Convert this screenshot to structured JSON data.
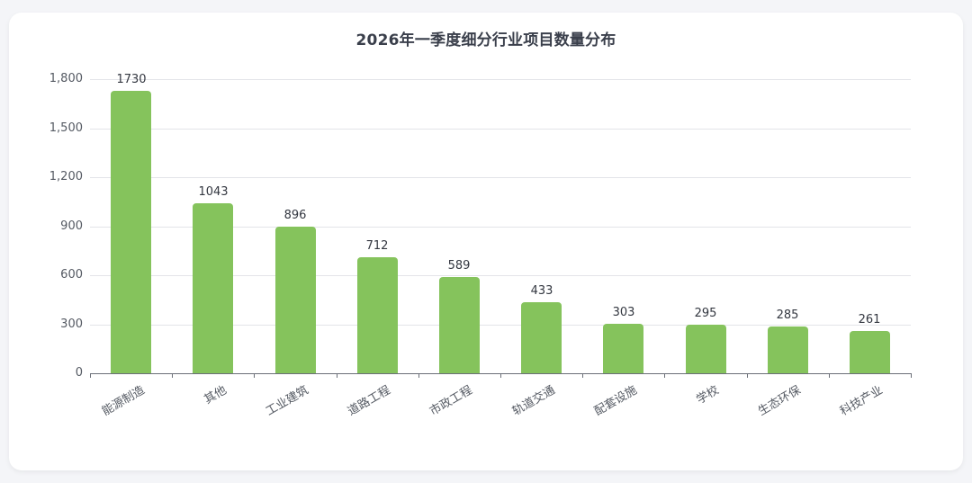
{
  "chart_data": {
    "type": "bar",
    "title": "2026年一季度细分行业项目数量分布",
    "xlabel": "",
    "ylabel": "",
    "categories": [
      "能源制造",
      "其他",
      "工业建筑",
      "道路工程",
      "市政工程",
      "轨道交通",
      "配套设施",
      "学校",
      "生态环保",
      "科技产业"
    ],
    "values": [
      1730,
      1043,
      896,
      712,
      589,
      433,
      303,
      295,
      285,
      261
    ],
    "ylim": [
      0,
      1800
    ],
    "yticks": [
      0,
      300,
      600,
      900,
      1200,
      1500,
      1800
    ],
    "ytick_labels": [
      "0",
      "300",
      "600",
      "900",
      "1,200",
      "1,500",
      "1,800"
    ],
    "grid": true,
    "legend": "none",
    "data_labels": true,
    "bar_color": "#85c35c",
    "x_label_rotation": -30
  },
  "colors": {
    "bar": "#85c35c",
    "grid": "#e3e4e8",
    "axis": "#6b6f78",
    "title": "#3a3f4b",
    "background": "#f4f5f8",
    "card": "#ffffff"
  }
}
